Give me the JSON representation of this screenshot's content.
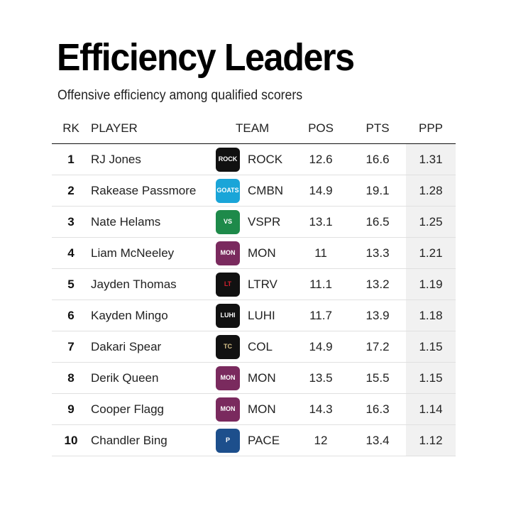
{
  "chart_data": {
    "type": "table",
    "title": "Efficiency Leaders",
    "subtitle": "Offensive efficiency among qualified scorers",
    "columns": [
      "RK",
      "PLAYER",
      "TEAM",
      "POS",
      "PTS",
      "PPP"
    ],
    "rows": [
      {
        "rk": "1",
        "player": "RJ Jones",
        "team": "ROCK",
        "pos": "12.6",
        "pts": "16.6",
        "ppp": "1.31",
        "logo": {
          "icon": "the-rock-logo",
          "bg": "#111111",
          "fg": "#ffffff",
          "text": "ROCK"
        }
      },
      {
        "rk": "2",
        "player": "Rakease Passmore",
        "team": "CMBN",
        "pos": "14.9",
        "pts": "19.1",
        "ppp": "1.28",
        "logo": {
          "icon": "goats-logo",
          "bg": "#1aa5d8",
          "fg": "#ffffff",
          "text": "GOATS"
        }
      },
      {
        "rk": "3",
        "player": "Nate Helams",
        "team": "VSPR",
        "pos": "13.1",
        "pts": "16.5",
        "ppp": "1.25",
        "logo": {
          "icon": "vs-logo",
          "bg": "#1e8a4a",
          "fg": "#ffffff",
          "text": "VS"
        }
      },
      {
        "rk": "4",
        "player": "Liam McNeeley",
        "team": "MON",
        "pos": "11",
        "pts": "13.3",
        "ppp": "1.21",
        "logo": {
          "icon": "eagle-logo",
          "bg": "#7a2a5e",
          "fg": "#ffffff",
          "text": "MON"
        }
      },
      {
        "rk": "5",
        "player": "Jayden Thomas",
        "team": "LTRV",
        "pos": "11.1",
        "pts": "13.2",
        "ppp": "1.19",
        "logo": {
          "icon": "lt-logo",
          "bg": "#111111",
          "fg": "#d1202f",
          "text": "LT"
        }
      },
      {
        "rk": "6",
        "player": "Kayden Mingo",
        "team": "LUHI",
        "pos": "11.7",
        "pts": "13.9",
        "ppp": "1.18",
        "logo": {
          "icon": "knight-logo",
          "bg": "#111111",
          "fg": "#ffffff",
          "text": "LUHI"
        }
      },
      {
        "rk": "7",
        "player": "Dakari Spear",
        "team": "COL",
        "pos": "14.9",
        "pts": "17.2",
        "ppp": "1.15",
        "logo": {
          "icon": "tc-logo",
          "bg": "#111111",
          "fg": "#d9c38a",
          "text": "TC"
        }
      },
      {
        "rk": "8",
        "player": "Derik Queen",
        "team": "MON",
        "pos": "13.5",
        "pts": "15.5",
        "ppp": "1.15",
        "logo": {
          "icon": "eagle-logo",
          "bg": "#7a2a5e",
          "fg": "#ffffff",
          "text": "MON"
        }
      },
      {
        "rk": "9",
        "player": "Cooper Flagg",
        "team": "MON",
        "pos": "14.3",
        "pts": "16.3",
        "ppp": "1.14",
        "logo": {
          "icon": "eagle-logo",
          "bg": "#7a2a5e",
          "fg": "#ffffff",
          "text": "MON"
        }
      },
      {
        "rk": "10",
        "player": "Chandler Bing",
        "team": "PACE",
        "pos": "12",
        "pts": "13.4",
        "ppp": "1.12",
        "logo": {
          "icon": "pace-logo",
          "bg": "#1d4f8c",
          "fg": "#ffffff",
          "text": "P"
        }
      }
    ],
    "highlight_column_bg": "#f1f1f1"
  }
}
